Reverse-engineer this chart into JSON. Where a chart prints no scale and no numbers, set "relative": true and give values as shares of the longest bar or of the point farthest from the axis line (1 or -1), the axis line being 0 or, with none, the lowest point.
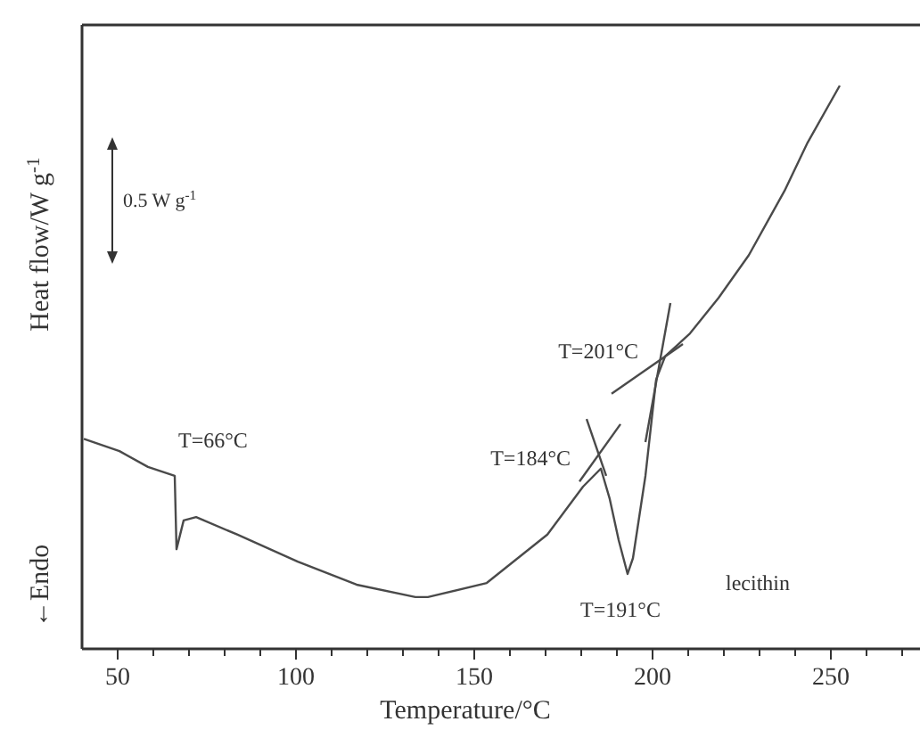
{
  "chart_data": {
    "type": "line",
    "xlabel": "Temperature/°C",
    "ylabel": "Heat flow/W g$^{-1}$",
    "relative": true,
    "tick_labels": "x",
    "xlim": [
      40,
      275
    ],
    "xticks": [
      50,
      {
        "value": 60,
        "label": null
      },
      {
        "value": 70,
        "label": null
      },
      {
        "value": 80,
        "label": null
      },
      {
        "value": 90,
        "label": null
      },
      100,
      {
        "value": 110,
        "label": null
      },
      {
        "value": 120,
        "label": null
      },
      {
        "value": 130,
        "label": null
      },
      {
        "value": 140,
        "label": null
      },
      150,
      {
        "value": 160,
        "label": null
      },
      {
        "value": 170,
        "label": null
      },
      {
        "value": 180,
        "label": null
      },
      {
        "value": 190,
        "label": null
      },
      200,
      {
        "value": 210,
        "label": null
      },
      {
        "value": 220,
        "label": null
      },
      {
        "value": 230,
        "label": null
      },
      {
        "value": 240,
        "label": null
      },
      250,
      {
        "value": 260,
        "label": null
      },
      {
        "value": 270,
        "label": null
      }
    ],
    "series": [
      {
        "color": "#4a4a4a",
        "x": [
          40.5,
          50.5,
          58.5,
          66,
          66.5,
          68.5,
          72,
          83.5,
          100.5,
          117,
          133.5,
          137,
          153.5,
          170.5,
          180.5,
          185.5,
          188,
          190.5,
          193,
          194.5,
          198,
          201,
          203.5,
          210.5,
          218.5,
          227,
          237,
          243.5,
          252.5
        ],
        "values": [
          0.373,
          0.351,
          0.323,
          0.307,
          0.177,
          0.228,
          0.234,
          0.203,
          0.155,
          0.114,
          0.092,
          0.092,
          0.117,
          0.203,
          0.288,
          0.32,
          0.266,
          0.193,
          0.133,
          0.161,
          0.307,
          0.478,
          0.519,
          0.56,
          0.623,
          0.699,
          0.813,
          0.899,
          1
        ]
      },
      {
        "color": "#4a4a4a",
        "x": [
          181.5,
          187
        ],
        "values": [
          0.408,
          0.307
        ]
      },
      {
        "color": "#4a4a4a",
        "x": [
          179.5,
          191
        ],
        "values": [
          0.297,
          0.399
        ]
      },
      {
        "color": "#4a4a4a",
        "x": [
          188.5,
          208.5
        ],
        "values": [
          0.453,
          0.541
        ]
      },
      {
        "color": "#4a4a4a",
        "x": [
          198,
          205
        ],
        "values": [
          0.367,
          0.614
        ]
      }
    ],
    "annotations": [
      "0.5 W g$^{-1}$",
      "←Endo",
      {
        "text": "T=66°C",
        "x": 66,
        "y": 0.307
      },
      {
        "text": "T=184°C",
        "x": 184,
        "y": 0.32
      },
      {
        "text": "T=201°C",
        "x": 201,
        "y": 0.478
      },
      {
        "text": "T=191°C",
        "x": 191,
        "y": 0.133
      },
      "lecithin"
    ]
  }
}
